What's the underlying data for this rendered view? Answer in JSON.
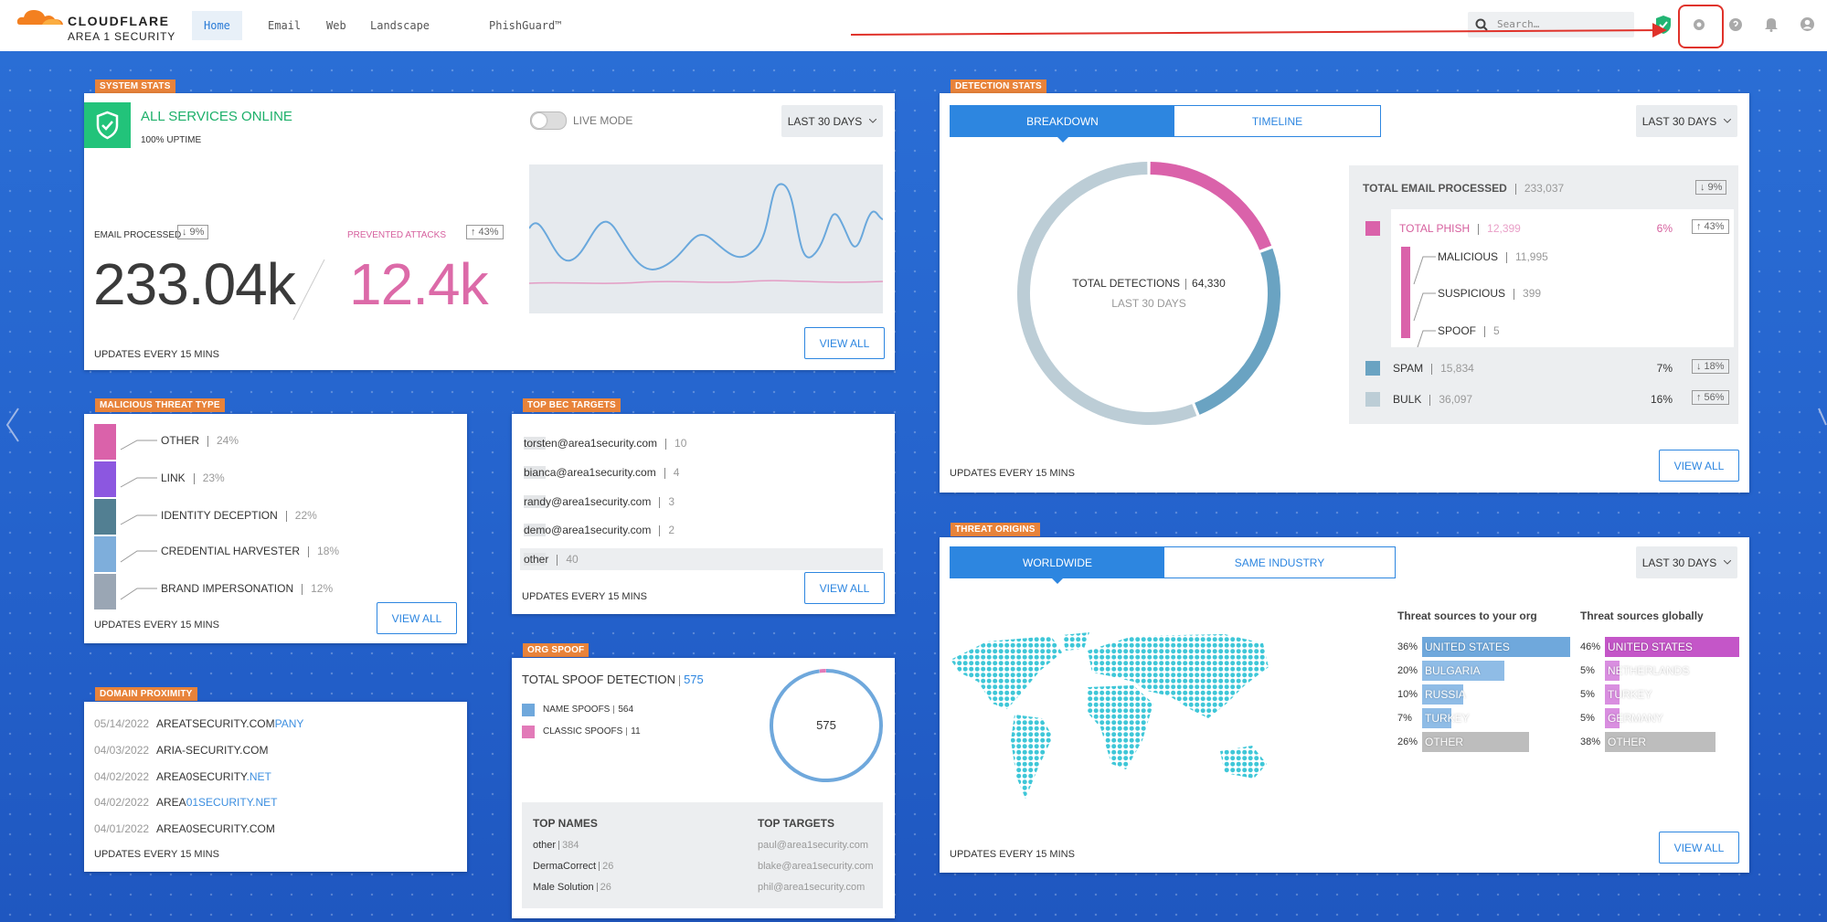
{
  "header": {
    "brand": "CLOUDFLARE",
    "product": "AREA 1 SECURITY",
    "nav": [
      "Home",
      "Email",
      "Web",
      "Landscape",
      "PhishGuard™"
    ],
    "search": "Search…"
  },
  "system_stats": {
    "tag": "SYSTEM STATS",
    "status": "ALL SERVICES ONLINE",
    "uptime": "100% UPTIME",
    "live_mode": "LIVE MODE",
    "period": "LAST 30 DAYS",
    "email_label": "EMAIL PROCESSED",
    "email_change": "↓ 9%",
    "email_value": "233.04k",
    "attacks_label": "PREVENTED ATTACKS",
    "attacks_change": "↑ 43%",
    "attacks_value": "12.4k",
    "footer": "UPDATES EVERY 15 MINS",
    "button": "VIEW ALL"
  },
  "malicious_threat_type": {
    "tag": "MALICIOUS THREAT TYPE",
    "items": [
      {
        "name": "OTHER",
        "share": "24%",
        "color": "#da62aa"
      },
      {
        "name": "LINK",
        "share": "23%",
        "color": "#8c57e0"
      },
      {
        "name": "IDENTITY DECEPTION",
        "share": "22%",
        "color": "#527f92"
      },
      {
        "name": "CREDENTIAL HARVESTER",
        "share": "18%",
        "color": "#7eaedb"
      },
      {
        "name": "BRAND IMPERSONATION",
        "share": "12%",
        "color": "#9aa6b4"
      }
    ],
    "footer": "UPDATES EVERY 15 MINS",
    "button": "VIEW ALL"
  },
  "top_bec_targets": {
    "tag": "TOP BEC TARGETS",
    "items": [
      {
        "target": "torsten@area1security.com",
        "count": 10
      },
      {
        "target": "bianca@area1security.com",
        "count": 4
      },
      {
        "target": "randy@area1security.com",
        "count": 3
      },
      {
        "target": "demo@area1security.com",
        "count": 2
      },
      {
        "target": "other",
        "count": 40
      }
    ],
    "footer": "UPDATES EVERY 15 MINS",
    "button": "VIEW ALL"
  },
  "org_spoof": {
    "tag": "ORG SPOOF",
    "title": "TOTAL SPOOF DETECTION",
    "total": 575,
    "legend": [
      {
        "name": "NAME SPOOFS",
        "count": 564,
        "color": "#6fa8dc"
      },
      {
        "name": "CLASSIC SPOOFS",
        "count": 11,
        "color": "#e27ab8"
      }
    ],
    "top_names": {
      "title": "TOP NAMES",
      "items": [
        {
          "name": "other",
          "count": 384
        },
        {
          "name": "DermaCorrect",
          "count": 26
        },
        {
          "name": "Male Solution",
          "count": 26
        }
      ]
    },
    "top_targets": {
      "title": "TOP TARGETS",
      "items": [
        "paul@area1security.com",
        "blake@area1security.com",
        "phil@area1security.com"
      ]
    }
  },
  "domain_proximity": {
    "tag": "DOMAIN PROXIMITY",
    "items": [
      {
        "date": "05/14/2022",
        "parts": [
          "AREATSECURITY.COM",
          "PANY"
        ]
      },
      {
        "date": "04/03/2022",
        "parts": [
          "ARIA-SECURITY.COM"
        ]
      },
      {
        "date": "04/02/2022",
        "parts": [
          "AREA0SECURITY",
          ".NET"
        ]
      },
      {
        "date": "04/02/2022",
        "parts": [
          "AREA",
          "01SECURITY.NET"
        ]
      },
      {
        "date": "04/01/2022",
        "parts": [
          "AREA0SECURITY.COM"
        ]
      }
    ],
    "footer": "UPDATES EVERY 15 MINS"
  },
  "detection_stats": {
    "tag": "DETECTION STATS",
    "tabs": [
      "BREAKDOWN",
      "TIMELINE"
    ],
    "period": "LAST 30 DAYS",
    "donut": {
      "title": "TOTAL DETECTIONS",
      "total": "64,330",
      "subtitle": "LAST 30 DAYS"
    },
    "total_email": {
      "label": "TOTAL EMAIL PROCESSED",
      "value": "233,037",
      "change": "↓ 9%"
    },
    "categories": [
      {
        "name": "TOTAL PHISH",
        "count": {
          "value": 12399,
          "label": "12,399"
        },
        "share": "6%",
        "change": "↑ 43%",
        "color": "#da62aa",
        "breakdown": [
          {
            "name": "MALICIOUS",
            "count": "11,995"
          },
          {
            "name": "SUSPICIOUS",
            "count": 399
          },
          {
            "name": "SPOOF",
            "count": 5
          }
        ]
      },
      {
        "name": "SPAM",
        "count": {
          "value": 15834,
          "label": "15,834"
        },
        "share": "7%",
        "change": "↓ 18%",
        "color": "#6aa3c2"
      },
      {
        "name": "BULK",
        "count": {
          "value": 36097,
          "label": "36,097"
        },
        "share": "16%",
        "change": "↑ 56%",
        "color": "#bccdd6"
      }
    ],
    "footer": "UPDATES EVERY 15 MINS",
    "button": "VIEW ALL"
  },
  "threat_origins": {
    "tag": "THREAT ORIGINS",
    "tabs": [
      "WORLDWIDE",
      "SAME INDUSTRY"
    ],
    "period": "LAST 30 DAYS",
    "lists": [
      {
        "title": "Threat sources to your org",
        "rows": [
          {
            "share": {
              "value": 36,
              "label": "36%"
            },
            "country": "UNITED STATES",
            "color": "#6fa8dc"
          },
          {
            "share": {
              "value": 20,
              "label": "20%"
            },
            "country": "BULGARIA",
            "color": "#8fbce6"
          },
          {
            "share": {
              "value": 10,
              "label": "10%"
            },
            "country": "RUSSIA",
            "color": "#8fbce6"
          },
          {
            "share": {
              "value": 7,
              "label": "7%"
            },
            "country": "TURKEY",
            "color": "#8fbce6"
          },
          {
            "share": {
              "value": 26,
              "label": "26%"
            },
            "country": "OTHER",
            "color": "#bdbdbd"
          }
        ]
      },
      {
        "title": "Threat sources globally",
        "rows": [
          {
            "share": {
              "value": 46,
              "label": "46%"
            },
            "country": "UNITED STATES",
            "color": "#c456c8"
          },
          {
            "share": {
              "value": 5,
              "label": "5%"
            },
            "country": "NETHERLANDS",
            "color": "#d98ee0"
          },
          {
            "share": {
              "value": 5,
              "label": "5%"
            },
            "country": "TURKEY",
            "color": "#d98ee0"
          },
          {
            "share": {
              "value": 5,
              "label": "5%"
            },
            "country": "GERMANY",
            "color": "#d98ee0"
          },
          {
            "share": {
              "value": 38,
              "label": "38%"
            },
            "country": "OTHER",
            "color": "#bdbdbd"
          }
        ]
      }
    ],
    "footer": "UPDATES EVERY 15 MINS",
    "button": "VIEW ALL"
  }
}
